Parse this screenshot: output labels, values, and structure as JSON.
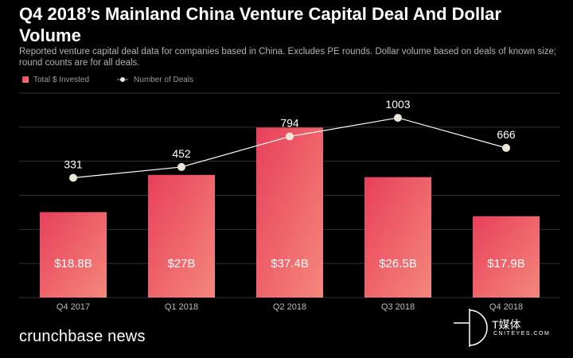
{
  "header": {
    "title": "Q4 2018’s Mainland China Venture Capital Deal And Dollar Volume",
    "subtitle": "Reported venture capital deal data for companies based in China. Excludes PE rounds. Dollar volume based on deals of known size; round counts are for all deals."
  },
  "legend": {
    "bars_label": "Total $ Invested",
    "line_label": "Number of Deals"
  },
  "colors": {
    "background": "#000000",
    "bar_top": "#e8405a",
    "bar_bottom": "#f4877c",
    "line": "#ffffff",
    "marker": "#ece6d8",
    "grid": "#333333"
  },
  "chart_data": {
    "type": "bar",
    "categories": [
      "Q4 2017",
      "Q1 2018",
      "Q2 2018",
      "Q3 2018",
      "Q4 2018"
    ],
    "series": [
      {
        "name": "Total $ Invested",
        "type": "bar",
        "values": [
          18.8,
          27.0,
          37.4,
          26.5,
          17.9
        ],
        "labels": [
          "$18.8B",
          "$27B",
          "$37.4B",
          "$26.5B",
          "$17.9B"
        ]
      },
      {
        "name": "Number of Deals",
        "type": "line",
        "values": [
          331,
          452,
          794,
          1003,
          666
        ],
        "labels": [
          "331",
          "452",
          "794",
          "1003",
          "666"
        ]
      }
    ],
    "ylim_bars": [
      0,
      45
    ],
    "ylim_line": [
      -1010,
      1280
    ],
    "grid": true,
    "legend_position": "top-left"
  },
  "footer": {
    "brand": "crunchbase news",
    "watermark_text": "T媒体",
    "watermark_sub": "CNITEYES.COM"
  }
}
